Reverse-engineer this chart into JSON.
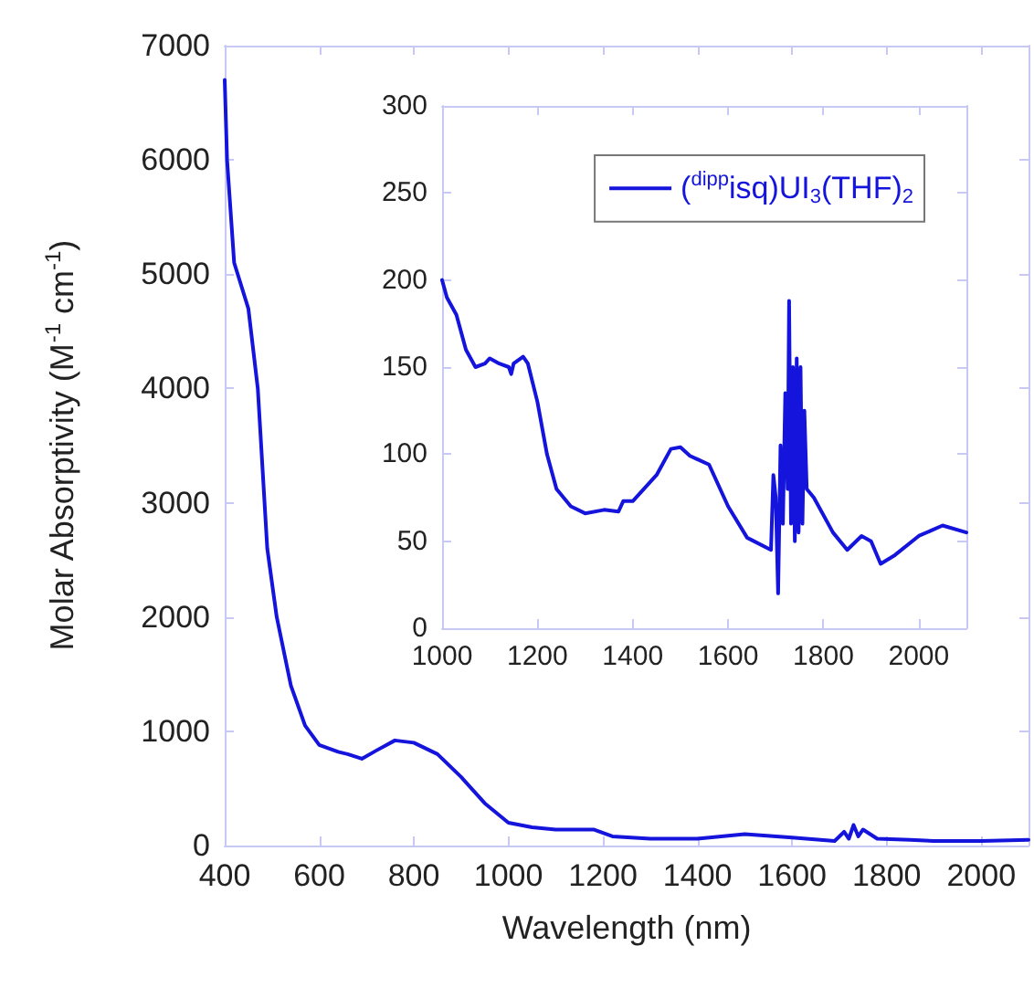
{
  "chart_data": [
    {
      "type": "line",
      "xlabel": "Wavelength (nm)",
      "ylabel": "Molar Absorptivity (M$^{-1}$ cm$^{-1}$)",
      "xlim": [
        400,
        2100
      ],
      "xticks": [
        400,
        600,
        800,
        1000,
        1200,
        1400,
        1600,
        1800,
        2000
      ],
      "ylim": [
        0,
        7000
      ],
      "yticks": [
        0,
        1000,
        2000,
        3000,
        4000,
        5000,
        6000,
        7000
      ],
      "grid": false,
      "legend": false,
      "marker": "none",
      "line_style": "solid",
      "series": [
        {
          "color": "#1414dc",
          "x": [
            400,
            405,
            420,
            450,
            470,
            490,
            510,
            540,
            570,
            600,
            640,
            660,
            690,
            720,
            760,
            800,
            850,
            900,
            950,
            1000,
            1050,
            1100,
            1180,
            1220,
            1300,
            1400,
            1500,
            1600,
            1690,
            1710,
            1720,
            1730,
            1740,
            1750,
            1780,
            1850,
            1900,
            2000,
            2100
          ],
          "values": [
            6700,
            6000,
            5100,
            4700,
            4000,
            2600,
            2000,
            1400,
            1050,
            880,
            820,
            800,
            760,
            830,
            920,
            900,
            800,
            600,
            370,
            200,
            160,
            140,
            140,
            80,
            60,
            60,
            100,
            70,
            40,
            120,
            60,
            180,
            80,
            140,
            60,
            50,
            40,
            40,
            50
          ]
        }
      ]
    },
    {
      "type": "line",
      "xlim": [
        1000,
        2100
      ],
      "xticks": [
        1000,
        1200,
        1400,
        1600,
        1800,
        2000
      ],
      "ylim": [
        0,
        300
      ],
      "yticks": [
        0,
        50,
        100,
        150,
        200,
        250,
        300
      ],
      "grid": false,
      "legend": "top right",
      "marker": "none",
      "line_style": "solid",
      "series": [
        {
          "name": "($^{dipp}$isq)UI$_{3}$(THF)$_{2}$",
          "color": "#1414dc",
          "x": [
            1000,
            1010,
            1030,
            1050,
            1070,
            1090,
            1100,
            1120,
            1140,
            1145,
            1150,
            1170,
            1180,
            1200,
            1220,
            1240,
            1270,
            1300,
            1340,
            1370,
            1380,
            1400,
            1450,
            1480,
            1500,
            1520,
            1560,
            1600,
            1640,
            1690,
            1695,
            1700,
            1705,
            1710,
            1715,
            1720,
            1725,
            1728,
            1732,
            1736,
            1740,
            1744,
            1748,
            1752,
            1756,
            1760,
            1765,
            1780,
            1820,
            1850,
            1880,
            1900,
            1920,
            1950,
            2000,
            2050,
            2100
          ],
          "values": [
            200,
            190,
            180,
            160,
            150,
            152,
            155,
            152,
            150,
            146,
            152,
            156,
            152,
            130,
            100,
            80,
            70,
            66,
            68,
            67,
            73,
            73,
            88,
            103,
            104,
            99,
            94,
            70,
            52,
            45,
            88,
            75,
            20,
            105,
            60,
            135,
            80,
            188,
            60,
            150,
            50,
            155,
            55,
            150,
            60,
            125,
            80,
            75,
            55,
            45,
            53,
            50,
            37,
            42,
            53,
            59,
            55
          ]
        }
      ]
    }
  ]
}
